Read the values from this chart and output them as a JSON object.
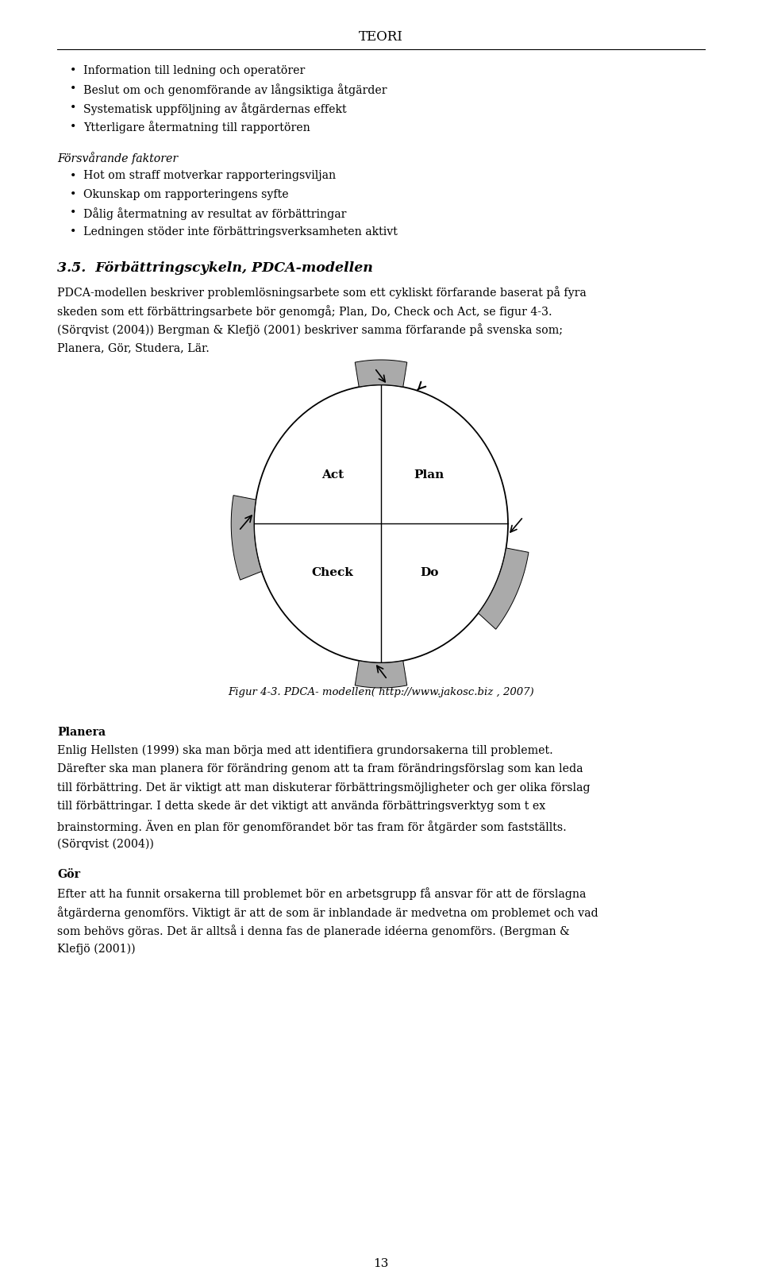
{
  "title": "TEORI",
  "bg_color": "#ffffff",
  "text_color": "#000000",
  "page_width": 9.6,
  "page_height": 16.09,
  "bullet_section1_items": [
    "Information till ledning och operatörer",
    "Beslut om och genomförande av långsiktiga åtgärder",
    "Systematisk uppföljning av åtgärdernas effekt",
    "Ytterligare återmatning till rapportören"
  ],
  "italic_heading": "Försvårande faktorer",
  "bullet_section2_items": [
    "Hot om straff motverkar rapporteringsviljan",
    "Okunskap om rapporteringens syfte",
    "Dålig återmatning av resultat av förbättringar",
    "Ledningen stöder inte förbättringsverksamheten aktivt"
  ],
  "section_heading": "3.5.  Förbättringscykeln, PDCA-modellen",
  "figure_caption": "Figur 4-3. PDCA- modellen( http://www.jakosc.biz , 2007)",
  "planera_heading": "Planera",
  "gor_heading": "Gör",
  "page_number": "13",
  "arrow_gray": "#aaaaaa",
  "arrow_edge": "#000000",
  "line_color": "#000000",
  "body_edge": "#000000"
}
